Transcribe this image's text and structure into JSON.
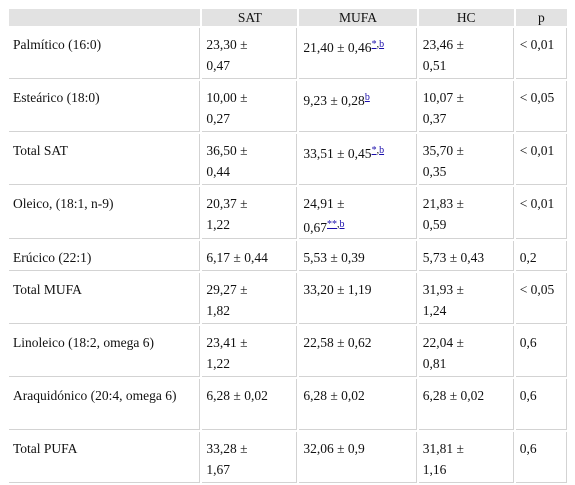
{
  "table": {
    "headers": [
      "",
      "SAT",
      "MUFA",
      "HC",
      "p"
    ],
    "rows": [
      {
        "label": "Palmítico (16:0)",
        "sat_a": "23,30 ±",
        "sat_b": "0,47",
        "mufa_a": "21,40 ± 0,46",
        "mufa_b": "",
        "mufa_note1": "*",
        "mufa_note2": "b",
        "hc_a": "23,46 ±",
        "hc_b": "0,51",
        "p": "< 0,01"
      },
      {
        "label": "Esteárico (18:0)",
        "sat_a": "10,00 ±",
        "sat_b": "0,27",
        "mufa_a": "9,23 ± 0,28",
        "mufa_b": "",
        "mufa_note1": "",
        "mufa_note2": "b",
        "hc_a": "10,07 ±",
        "hc_b": "0,37",
        "p": "< 0,05"
      },
      {
        "label": "Total SAT",
        "sat_a": "36,50 ±",
        "sat_b": "0,44",
        "mufa_a": "33,51 ± 0,45",
        "mufa_b": "",
        "mufa_note1": "*",
        "mufa_note2": "b",
        "hc_a": "35,70 ±",
        "hc_b": "0,35",
        "p": "< 0,01"
      },
      {
        "label": "Oleico, (18:1, n-9)",
        "sat_a": "20,37 ±",
        "sat_b": "1,22",
        "mufa_a": "24,91 ±",
        "mufa_b": "0,67",
        "mufa_note1": "**",
        "mufa_note2": "b",
        "hc_a": "21,83 ±",
        "hc_b": "0,59",
        "p": "< 0,01"
      },
      {
        "label": "Erúcico (22:1)",
        "sat_a": "6,17 ± 0,44",
        "sat_b": "",
        "mufa_a": "5,53 ± 0,39",
        "mufa_b": "",
        "mufa_note1": "",
        "mufa_note2": "",
        "hc_a": "5,73 ± 0,43",
        "hc_b": "",
        "p": "0,2"
      },
      {
        "label": "Total MUFA",
        "sat_a": "29,27 ±",
        "sat_b": "1,82",
        "mufa_a": "33,20 ± 1,19",
        "mufa_b": "",
        "mufa_note1": "",
        "mufa_note2": "",
        "hc_a": "31,93 ±",
        "hc_b": "1,24",
        "p": "< 0,05"
      },
      {
        "label": "Linoleico (18:2, omega 6)",
        "sat_a": "23,41 ±",
        "sat_b": "1,22",
        "mufa_a": "22,58 ± 0,62",
        "mufa_b": "",
        "mufa_note1": "",
        "mufa_note2": "",
        "hc_a": "22,04 ±",
        "hc_b": "0,81",
        "p": "0,6"
      },
      {
        "label": "Araquidónico (20:4, omega 6)",
        "sat_a": "6,28 ± 0,02",
        "sat_b": "",
        "mufa_a": "6,28 ± 0,02",
        "mufa_b": "",
        "mufa_note1": "",
        "mufa_note2": "",
        "hc_a": "6,28 ± 0,02",
        "hc_b": "",
        "p": "0,6"
      },
      {
        "label": "Total PUFA",
        "sat_a": "33,28 ±",
        "sat_b": "1,67",
        "mufa_a": "32,06 ± 0,9",
        "mufa_b": "",
        "mufa_note1": "",
        "mufa_note2": "",
        "hc_a": "31,81 ±",
        "hc_b": "1,16",
        "p": "0,6"
      }
    ]
  }
}
